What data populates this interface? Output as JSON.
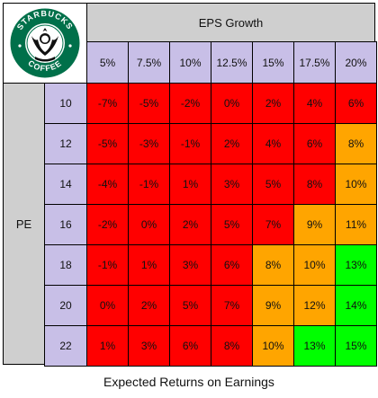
{
  "logo": {
    "name": "starbucks-coffee-logo",
    "text": "STARBUCKS COFFEE",
    "ring_color": "#00704A"
  },
  "chart_data": {
    "type": "table",
    "title": "Expected Returns on Earnings",
    "column_group_label": "EPS Growth",
    "row_group_label": "PE",
    "columns": [
      "5%",
      "7.5%",
      "10%",
      "12.5%",
      "15%",
      "17.5%",
      "20%"
    ],
    "rows": [
      "10",
      "12",
      "14",
      "16",
      "18",
      "20",
      "22"
    ],
    "values": [
      [
        "-7%",
        "-5%",
        "-2%",
        "0%",
        "2%",
        "4%",
        "6%"
      ],
      [
        "-5%",
        "-3%",
        "-1%",
        "2%",
        "4%",
        "6%",
        "8%"
      ],
      [
        "-4%",
        "-1%",
        "1%",
        "3%",
        "5%",
        "8%",
        "10%"
      ],
      [
        "-2%",
        "0%",
        "2%",
        "5%",
        "7%",
        "9%",
        "11%"
      ],
      [
        "-1%",
        "1%",
        "3%",
        "6%",
        "8%",
        "10%",
        "13%"
      ],
      [
        "0%",
        "2%",
        "5%",
        "7%",
        "9%",
        "12%",
        "14%"
      ],
      [
        "1%",
        "3%",
        "6%",
        "8%",
        "10%",
        "13%",
        "15%"
      ]
    ],
    "colors": {
      "low": "#ff0000",
      "mid": "#ffa500",
      "high": "#00ff00"
    },
    "color_categories": [
      [
        "low",
        "low",
        "low",
        "low",
        "low",
        "low",
        "low"
      ],
      [
        "low",
        "low",
        "low",
        "low",
        "low",
        "low",
        "mid"
      ],
      [
        "low",
        "low",
        "low",
        "low",
        "low",
        "low",
        "mid"
      ],
      [
        "low",
        "low",
        "low",
        "low",
        "low",
        "mid",
        "mid"
      ],
      [
        "low",
        "low",
        "low",
        "low",
        "mid",
        "mid",
        "high"
      ],
      [
        "low",
        "low",
        "low",
        "low",
        "mid",
        "mid",
        "high"
      ],
      [
        "low",
        "low",
        "low",
        "low",
        "mid",
        "high",
        "high"
      ]
    ]
  }
}
